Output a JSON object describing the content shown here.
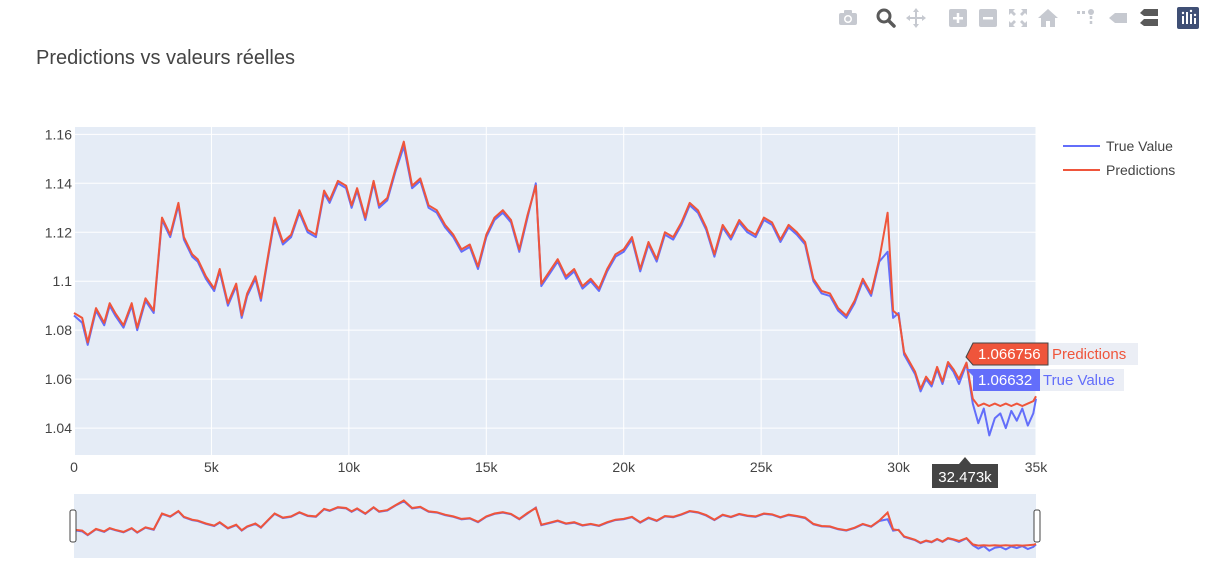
{
  "modebar": {
    "icons": [
      "camera-icon",
      "zoom-icon",
      "pan-icon",
      "zoom-in-icon",
      "zoom-out-icon",
      "autoscale-icon",
      "reset-axes-icon",
      "spike-lines-icon",
      "hover-closest-icon",
      "hover-compare-icon",
      "plotly-logo-icon"
    ]
  },
  "chart_data": {
    "type": "line",
    "title": "Predictions vs valeurs réelles",
    "xlabel": "",
    "ylabel": "",
    "xlim": [
      0,
      35000
    ],
    "ylim": [
      1.029,
      1.163
    ],
    "x_ticks": [
      0,
      5000,
      10000,
      15000,
      20000,
      25000,
      30000,
      35000
    ],
    "x_tick_labels": [
      "0",
      "5k",
      "10k",
      "15k",
      "20k",
      "25k",
      "30k",
      "35k"
    ],
    "y_ticks": [
      1.04,
      1.06,
      1.08,
      1.1,
      1.12,
      1.14,
      1.16
    ],
    "y_tick_labels": [
      "1.04",
      "1.06",
      "1.08",
      "1.1",
      "1.12",
      "1.14",
      "1.16"
    ],
    "grid": true,
    "legend_position": "top-right",
    "rangeslider": true,
    "series": [
      {
        "name": "True Value",
        "color": "#636efa",
        "x": [
          0,
          300,
          500,
          800,
          1100,
          1300,
          1500,
          1800,
          2100,
          2300,
          2600,
          2900,
          3200,
          3500,
          3800,
          4000,
          4300,
          4500,
          4800,
          5100,
          5300,
          5600,
          5900,
          6100,
          6300,
          6600,
          6800,
          7100,
          7300,
          7600,
          7900,
          8200,
          8500,
          8800,
          9100,
          9300,
          9600,
          9900,
          10100,
          10300,
          10600,
          10900,
          11100,
          11400,
          11700,
          12000,
          12300,
          12600,
          12900,
          13200,
          13500,
          13800,
          14100,
          14400,
          14700,
          15000,
          15300,
          15600,
          15900,
          16200,
          16500,
          16800,
          17000,
          17300,
          17600,
          17900,
          18200,
          18500,
          18800,
          19100,
          19400,
          19700,
          20000,
          20300,
          20600,
          20900,
          21200,
          21500,
          21800,
          22100,
          22400,
          22700,
          23000,
          23300,
          23600,
          23900,
          24200,
          24500,
          24800,
          25100,
          25400,
          25700,
          26000,
          26300,
          26600,
          26900,
          27200,
          27500,
          27800,
          28100,
          28400,
          28700,
          29000,
          29300,
          29600,
          29800,
          30000,
          30200,
          30400,
          30600,
          30800,
          31000,
          31200,
          31400,
          31600,
          31800,
          32000,
          32200,
          32473,
          32700,
          32900,
          33100,
          33300,
          33500,
          33700,
          33900,
          34100,
          34300,
          34500,
          34700,
          34900,
          35000
        ],
        "y": [
          1.086,
          1.083,
          1.074,
          1.088,
          1.082,
          1.09,
          1.086,
          1.081,
          1.09,
          1.08,
          1.092,
          1.087,
          1.125,
          1.118,
          1.131,
          1.117,
          1.11,
          1.108,
          1.101,
          1.096,
          1.104,
          1.09,
          1.098,
          1.085,
          1.094,
          1.101,
          1.092,
          1.112,
          1.125,
          1.115,
          1.118,
          1.128,
          1.12,
          1.118,
          1.136,
          1.132,
          1.14,
          1.138,
          1.13,
          1.137,
          1.125,
          1.14,
          1.13,
          1.133,
          1.145,
          1.155,
          1.138,
          1.141,
          1.13,
          1.128,
          1.122,
          1.118,
          1.112,
          1.114,
          1.105,
          1.118,
          1.125,
          1.128,
          1.124,
          1.112,
          1.126,
          1.14,
          1.098,
          1.103,
          1.108,
          1.101,
          1.104,
          1.097,
          1.1,
          1.096,
          1.104,
          1.11,
          1.112,
          1.117,
          1.104,
          1.115,
          1.108,
          1.119,
          1.117,
          1.123,
          1.131,
          1.128,
          1.121,
          1.11,
          1.122,
          1.117,
          1.124,
          1.12,
          1.118,
          1.125,
          1.123,
          1.116,
          1.122,
          1.119,
          1.115,
          1.1,
          1.095,
          1.094,
          1.088,
          1.085,
          1.091,
          1.1,
          1.094,
          1.108,
          1.112,
          1.085,
          1.087,
          1.07,
          1.066,
          1.062,
          1.055,
          1.06,
          1.057,
          1.064,
          1.058,
          1.066,
          1.063,
          1.058,
          1.06632,
          1.05,
          1.042,
          1.048,
          1.037,
          1.044,
          1.046,
          1.04,
          1.047,
          1.043,
          1.048,
          1.041,
          1.046,
          1.052
        ]
      },
      {
        "name": "Predictions",
        "color": "#ef553b",
        "x": [
          0,
          300,
          500,
          800,
          1100,
          1300,
          1500,
          1800,
          2100,
          2300,
          2600,
          2900,
          3200,
          3500,
          3800,
          4000,
          4300,
          4500,
          4800,
          5100,
          5300,
          5600,
          5900,
          6100,
          6300,
          6600,
          6800,
          7100,
          7300,
          7600,
          7900,
          8200,
          8500,
          8800,
          9100,
          9300,
          9600,
          9900,
          10100,
          10300,
          10600,
          10900,
          11100,
          11400,
          11700,
          12000,
          12300,
          12600,
          12900,
          13200,
          13500,
          13800,
          14100,
          14400,
          14700,
          15000,
          15300,
          15600,
          15900,
          16200,
          16500,
          16800,
          17000,
          17300,
          17600,
          17900,
          18200,
          18500,
          18800,
          19100,
          19400,
          19700,
          20000,
          20300,
          20600,
          20900,
          21200,
          21500,
          21800,
          22100,
          22400,
          22700,
          23000,
          23300,
          23600,
          23900,
          24200,
          24500,
          24800,
          25100,
          25400,
          25700,
          26000,
          26300,
          26600,
          26900,
          27200,
          27500,
          27800,
          28100,
          28400,
          28700,
          29000,
          29300,
          29600,
          29800,
          30000,
          30200,
          30400,
          30600,
          30800,
          31000,
          31200,
          31400,
          31600,
          31800,
          32000,
          32200,
          32473,
          32700,
          32900,
          33100,
          33300,
          33500,
          33700,
          33900,
          34100,
          34300,
          34500,
          34700,
          34900,
          35000
        ],
        "y": [
          1.087,
          1.085,
          1.075,
          1.089,
          1.083,
          1.091,
          1.087,
          1.082,
          1.091,
          1.081,
          1.093,
          1.088,
          1.126,
          1.119,
          1.132,
          1.118,
          1.111,
          1.109,
          1.102,
          1.097,
          1.105,
          1.091,
          1.099,
          1.086,
          1.095,
          1.102,
          1.093,
          1.113,
          1.126,
          1.116,
          1.119,
          1.129,
          1.121,
          1.119,
          1.137,
          1.133,
          1.141,
          1.139,
          1.131,
          1.138,
          1.126,
          1.141,
          1.131,
          1.134,
          1.146,
          1.157,
          1.139,
          1.142,
          1.131,
          1.129,
          1.123,
          1.119,
          1.113,
          1.115,
          1.106,
          1.119,
          1.126,
          1.129,
          1.125,
          1.113,
          1.127,
          1.139,
          1.099,
          1.104,
          1.109,
          1.102,
          1.105,
          1.098,
          1.101,
          1.097,
          1.105,
          1.111,
          1.113,
          1.118,
          1.105,
          1.116,
          1.109,
          1.12,
          1.118,
          1.124,
          1.132,
          1.129,
          1.122,
          1.111,
          1.123,
          1.118,
          1.125,
          1.121,
          1.119,
          1.126,
          1.124,
          1.117,
          1.123,
          1.12,
          1.116,
          1.101,
          1.096,
          1.095,
          1.089,
          1.086,
          1.092,
          1.101,
          1.095,
          1.109,
          1.128,
          1.088,
          1.086,
          1.071,
          1.067,
          1.063,
          1.056,
          1.061,
          1.058,
          1.065,
          1.059,
          1.067,
          1.064,
          1.06,
          1.066756,
          1.052,
          1.049,
          1.05,
          1.049,
          1.05,
          1.049,
          1.05,
          1.049,
          1.05,
          1.049,
          1.05,
          1.051,
          1.053
        ]
      }
    ],
    "hover": {
      "x_label": "32.473k",
      "items": [
        {
          "series": "Predictions",
          "value": "1.066756",
          "color": "#ef553b"
        },
        {
          "series": "True Value",
          "value": "1.06632",
          "color": "#636efa"
        }
      ]
    }
  }
}
